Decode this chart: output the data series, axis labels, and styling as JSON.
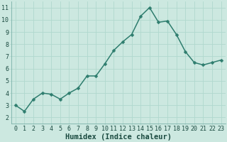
{
  "x": [
    0,
    1,
    2,
    3,
    4,
    5,
    6,
    7,
    8,
    9,
    10,
    11,
    12,
    13,
    14,
    15,
    16,
    17,
    18,
    19,
    20,
    21,
    22,
    23
  ],
  "y": [
    3.0,
    2.5,
    3.5,
    4.0,
    3.9,
    3.5,
    4.0,
    4.4,
    5.4,
    5.4,
    6.4,
    7.5,
    8.2,
    8.8,
    10.3,
    11.0,
    9.8,
    9.9,
    8.8,
    7.4,
    6.5,
    6.3,
    6.5,
    6.7
  ],
  "line_color": "#2e7d6e",
  "marker_color": "#2e7d6e",
  "bg_color": "#cce8e0",
  "grid_color": "#b0d8ce",
  "xlabel": "Humidex (Indice chaleur)",
  "xlim": [
    -0.5,
    23.5
  ],
  "ylim": [
    1.5,
    11.5
  ],
  "yticks": [
    2,
    3,
    4,
    5,
    6,
    7,
    8,
    9,
    10,
    11
  ],
  "xticks": [
    0,
    1,
    2,
    3,
    4,
    5,
    6,
    7,
    8,
    9,
    10,
    11,
    12,
    13,
    14,
    15,
    16,
    17,
    18,
    19,
    20,
    21,
    22,
    23
  ],
  "font_color": "#1a4a40",
  "xlabel_fontsize": 7.5,
  "tick_fontsize": 6.0,
  "linewidth": 1.1,
  "markersize": 2.5
}
